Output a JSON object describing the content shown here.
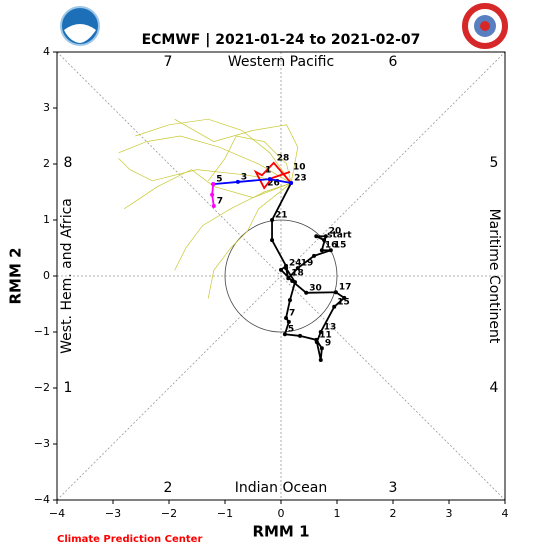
{
  "chart_data": {
    "type": "line",
    "title": "ECMWF | 2021-01-24 to 2021-02-07",
    "xlabel": "RMM 1",
    "ylabel": "RMM 2",
    "footer": "Climate Prediction Center",
    "xlim": [
      -4,
      4
    ],
    "ylim": [
      -4,
      4
    ],
    "xticks": [
      {
        "value": -4,
        "label": "−4"
      },
      {
        "value": -3,
        "label": "−3"
      },
      {
        "value": -2,
        "label": "−2"
      },
      {
        "value": -1,
        "label": "−1"
      },
      0,
      1,
      2,
      3,
      4
    ],
    "yticks": [
      {
        "value": -4,
        "label": "−4"
      },
      {
        "value": -3,
        "label": "−3"
      },
      {
        "value": -2,
        "label": "−2"
      },
      {
        "value": -1,
        "label": "−1"
      },
      0,
      1,
      2,
      3,
      4
    ],
    "phases": [
      "1",
      "2",
      "3",
      "4",
      "5",
      "6",
      "7",
      "8"
    ],
    "regions": [
      "Western Pacific",
      "Maritime Continent",
      "Indian Ocean",
      "West. Hem. and Africa"
    ],
    "series": [
      {
        "color": "#c8c832",
        "markers": false,
        "x": [
          0.18,
          -0.4,
          -1.1,
          -1.8,
          -2.4,
          -2.9
        ],
        "y": [
          1.66,
          2.0,
          2.3,
          2.5,
          2.4,
          2.2
        ]
      },
      {
        "color": "#c8c832",
        "markers": false,
        "x": [
          0.18,
          -0.3,
          -0.9,
          -1.4,
          -1.7,
          -1.9
        ],
        "y": [
          1.66,
          1.5,
          1.2,
          0.9,
          0.5,
          0.1
        ]
      },
      {
        "color": "#c8c832",
        "markers": false,
        "x": [
          0.18,
          -0.2,
          -0.7,
          -1.3,
          -2.0,
          -2.6
        ],
        "y": [
          1.66,
          2.2,
          2.6,
          2.8,
          2.7,
          2.5
        ]
      },
      {
        "color": "#c8c832",
        "markers": false,
        "x": [
          0.18,
          -0.5,
          -1.2,
          -1.6,
          -2.2,
          -2.8
        ],
        "y": [
          1.66,
          1.4,
          1.6,
          1.9,
          1.6,
          1.2
        ]
      },
      {
        "color": "#c8c832",
        "markers": false,
        "x": [
          0.18,
          0.1,
          -0.3,
          -0.8,
          -1.0,
          -1.3
        ],
        "y": [
          1.66,
          2.0,
          2.4,
          2.5,
          2.1,
          1.7
        ]
      },
      {
        "color": "#c8c832",
        "markers": false,
        "x": [
          0.18,
          -0.4,
          -0.6,
          -0.9,
          -1.2,
          -1.3
        ],
        "y": [
          1.66,
          1.2,
          0.8,
          0.5,
          0.1,
          -0.4
        ]
      },
      {
        "color": "#c8c832",
        "markers": false,
        "x": [
          0.18,
          -0.6,
          -1.5,
          -2.3,
          -2.7,
          -2.9
        ],
        "y": [
          1.66,
          1.8,
          1.9,
          1.7,
          1.9,
          2.1
        ]
      },
      {
        "color": "#c8c832",
        "markers": false,
        "x": [
          0.18,
          0.3,
          0.1,
          -0.5,
          -1.2,
          -1.9
        ],
        "y": [
          1.66,
          2.3,
          2.7,
          2.6,
          2.4,
          2.8
        ]
      },
      {
        "color": "#000000",
        "markers": true,
        "x": [
          0.77,
          0.63,
          0.8,
          0.73,
          0.89,
          0.59,
          0.3,
          0.13,
          0.09,
          0.25,
          0.16,
          0.09,
          0.14,
          0.07,
          0.34,
          0.63,
          0.73,
          0.71,
          0.64,
          0.71,
          0.95,
          1.13,
          0.98,
          0.45,
          0.2,
          0.0,
          0.09,
          -0.16,
          -0.16,
          0.18
        ],
        "y": [
          0.64,
          0.71,
          0.71,
          0.46,
          0.46,
          0.36,
          0.14,
          -0.04,
          0.14,
          -0.11,
          -0.43,
          -0.75,
          -0.82,
          -1.04,
          -1.07,
          -1.14,
          -1.29,
          -1.5,
          -1.18,
          -1.0,
          -0.55,
          -0.39,
          -0.29,
          -0.3,
          -0.09,
          0.11,
          0.18,
          0.64,
          1.0,
          1.66
        ],
        "labels": [
          "start",
          null,
          "20",
          "16",
          "15",
          null,
          "19",
          "18",
          "24",
          null,
          null,
          "7",
          null,
          "5",
          null,
          "11",
          "9",
          null,
          null,
          "13",
          "15",
          null,
          "17",
          "30",
          null,
          null,
          null,
          null,
          "21",
          "23"
        ]
      },
      {
        "color": "#ff0000",
        "markers": false,
        "x": [
          0.18,
          -0.13,
          -0.34,
          -0.45,
          -0.3,
          -0.16,
          0.16
        ],
        "y": [
          1.66,
          2.02,
          1.8,
          1.86,
          1.57,
          1.75,
          1.86
        ],
        "labels": [
          null,
          "28",
          "1",
          null,
          "26",
          null,
          "10"
        ]
      },
      {
        "color": "#0000ff",
        "markers": true,
        "x": [
          0.18,
          -0.2,
          -0.77,
          -1.21
        ],
        "y": [
          1.66,
          1.73,
          1.68,
          1.64
        ],
        "labels": [
          null,
          null,
          "3",
          "5"
        ]
      },
      {
        "color": "#ff00ff",
        "markers": true,
        "x": [
          -1.21,
          -1.23,
          -1.2
        ],
        "y": [
          1.64,
          1.45,
          1.25
        ],
        "labels": [
          null,
          null,
          "7"
        ]
      }
    ]
  }
}
